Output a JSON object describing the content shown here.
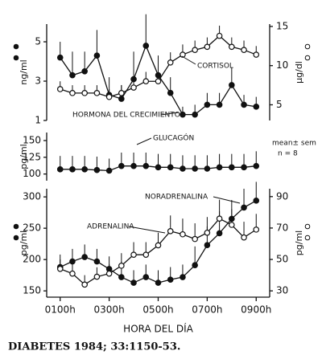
{
  "chart_data": [
    {
      "type": "line",
      "ylabel": "ng/ml",
      "y2label": "µg/dl",
      "x": [
        1,
        1.5,
        2,
        2.5,
        3,
        3.5,
        4,
        4.5,
        5,
        5.5,
        6,
        6.5,
        7,
        7.5,
        8,
        8.5,
        9
      ],
      "xlim": [
        0.45,
        9.55
      ],
      "ylim": [
        1,
        5.9
      ],
      "yticks": [
        1,
        3,
        5
      ],
      "y2lim": [
        3,
        15.3
      ],
      "y2ticks": [
        5,
        10,
        15
      ],
      "series": [
        {
          "name": "HORMONA DEL CRECIMIENTO",
          "color": "#111",
          "marker": "filled",
          "values": [
            4.2,
            3.3,
            3.5,
            4.3,
            2.3,
            2.1,
            3.1,
            4.8,
            3.3,
            2.4,
            1.3,
            1.3,
            1.8,
            1.8,
            2.8,
            1.8,
            1.7
          ],
          "errors": [
            0.8,
            1.2,
            1.0,
            1.3,
            0.9,
            0.7,
            1.4,
            1.6,
            1.0,
            0.8,
            0.4,
            0.5,
            0.6,
            0.6,
            0.9,
            0.5,
            0.5
          ]
        },
        {
          "name": "CORTISOL",
          "color": "#111",
          "marker": "open",
          "axis": "y2",
          "values": [
            7.0,
            6.5,
            6.5,
            6.5,
            6.0,
            6.5,
            7.2,
            8.0,
            8.0,
            10.4,
            11.4,
            12.0,
            12.4,
            13.8,
            12.4,
            12.0,
            11.4
          ],
          "errors": [
            1.0,
            1.0,
            1.0,
            1.0,
            1.0,
            1.0,
            1.2,
            1.2,
            1.2,
            1.3,
            1.3,
            1.2,
            1.2,
            1.3,
            1.2,
            1.2,
            1.1
          ]
        }
      ]
    },
    {
      "type": "line",
      "ylabel": "pg/ml",
      "x": [
        1,
        1.5,
        2,
        2.5,
        3,
        3.5,
        4,
        4.5,
        5,
        5.5,
        6,
        6.5,
        7,
        7.5,
        8,
        8.5,
        9
      ],
      "xlim": [
        0.45,
        9.55
      ],
      "ylim": [
        90,
        162
      ],
      "yticks": [
        100,
        125,
        150
      ],
      "annotations": [
        "mean± sem",
        "n = 8"
      ],
      "series": [
        {
          "name": "GLUCAGÓN",
          "color": "#111",
          "marker": "filled",
          "values": [
            107,
            107,
            107,
            106,
            105,
            112,
            112,
            112,
            110,
            110,
            108,
            108,
            108,
            110,
            110,
            110,
            112
          ],
          "errors": [
            20,
            20,
            20,
            20,
            18,
            20,
            20,
            20,
            20,
            20,
            20,
            20,
            20,
            20,
            20,
            20,
            22
          ]
        }
      ]
    },
    {
      "type": "line",
      "ylabel": "pg/ml",
      "y2label": "pg/ml",
      "xlabel": "HORA DEL DÍA",
      "x": [
        1,
        1.5,
        2,
        2.5,
        3,
        3.5,
        4,
        4.5,
        5,
        5.5,
        6,
        6.5,
        7,
        7.5,
        8,
        8.5,
        9
      ],
      "xlim": [
        0.45,
        9.55
      ],
      "xticks": [
        {
          "value": 1,
          "label": "0100h"
        },
        {
          "value": 3,
          "label": "0300h"
        },
        {
          "value": 5,
          "label": "0500h"
        },
        {
          "value": 7,
          "label": "0700h"
        },
        {
          "value": 9,
          "label": "0900h"
        }
      ],
      "ylim": [
        140,
        313
      ],
      "yticks": [
        150,
        200,
        250,
        300
      ],
      "y2lim": [
        26,
        95
      ],
      "y2ticks": [
        30,
        50,
        70,
        90
      ],
      "series": [
        {
          "name": "NORADRENALINA",
          "color": "#111",
          "marker": "filled",
          "values": [
            188,
            197,
            204,
            197,
            185,
            172,
            163,
            172,
            163,
            168,
            172,
            191,
            223,
            242,
            265,
            283,
            294
          ],
          "errors": [
            20,
            20,
            20,
            20,
            20,
            25,
            20,
            20,
            20,
            20,
            20,
            30,
            30,
            35,
            30,
            30,
            30
          ]
        },
        {
          "name": "ADRENALINA",
          "color": "#111",
          "marker": "open",
          "axis": "y2",
          "values": [
            44,
            41,
            34,
            39,
            41,
            46,
            53,
            53,
            59,
            68,
            66,
            63,
            67,
            76,
            72,
            64,
            69
          ],
          "errors": [
            6,
            6,
            6,
            6,
            6,
            8,
            8,
            8,
            8,
            10,
            10,
            10,
            10,
            12,
            10,
            10,
            10
          ]
        }
      ]
    }
  ],
  "source": "DIABETES 1984; 33:1150-53."
}
